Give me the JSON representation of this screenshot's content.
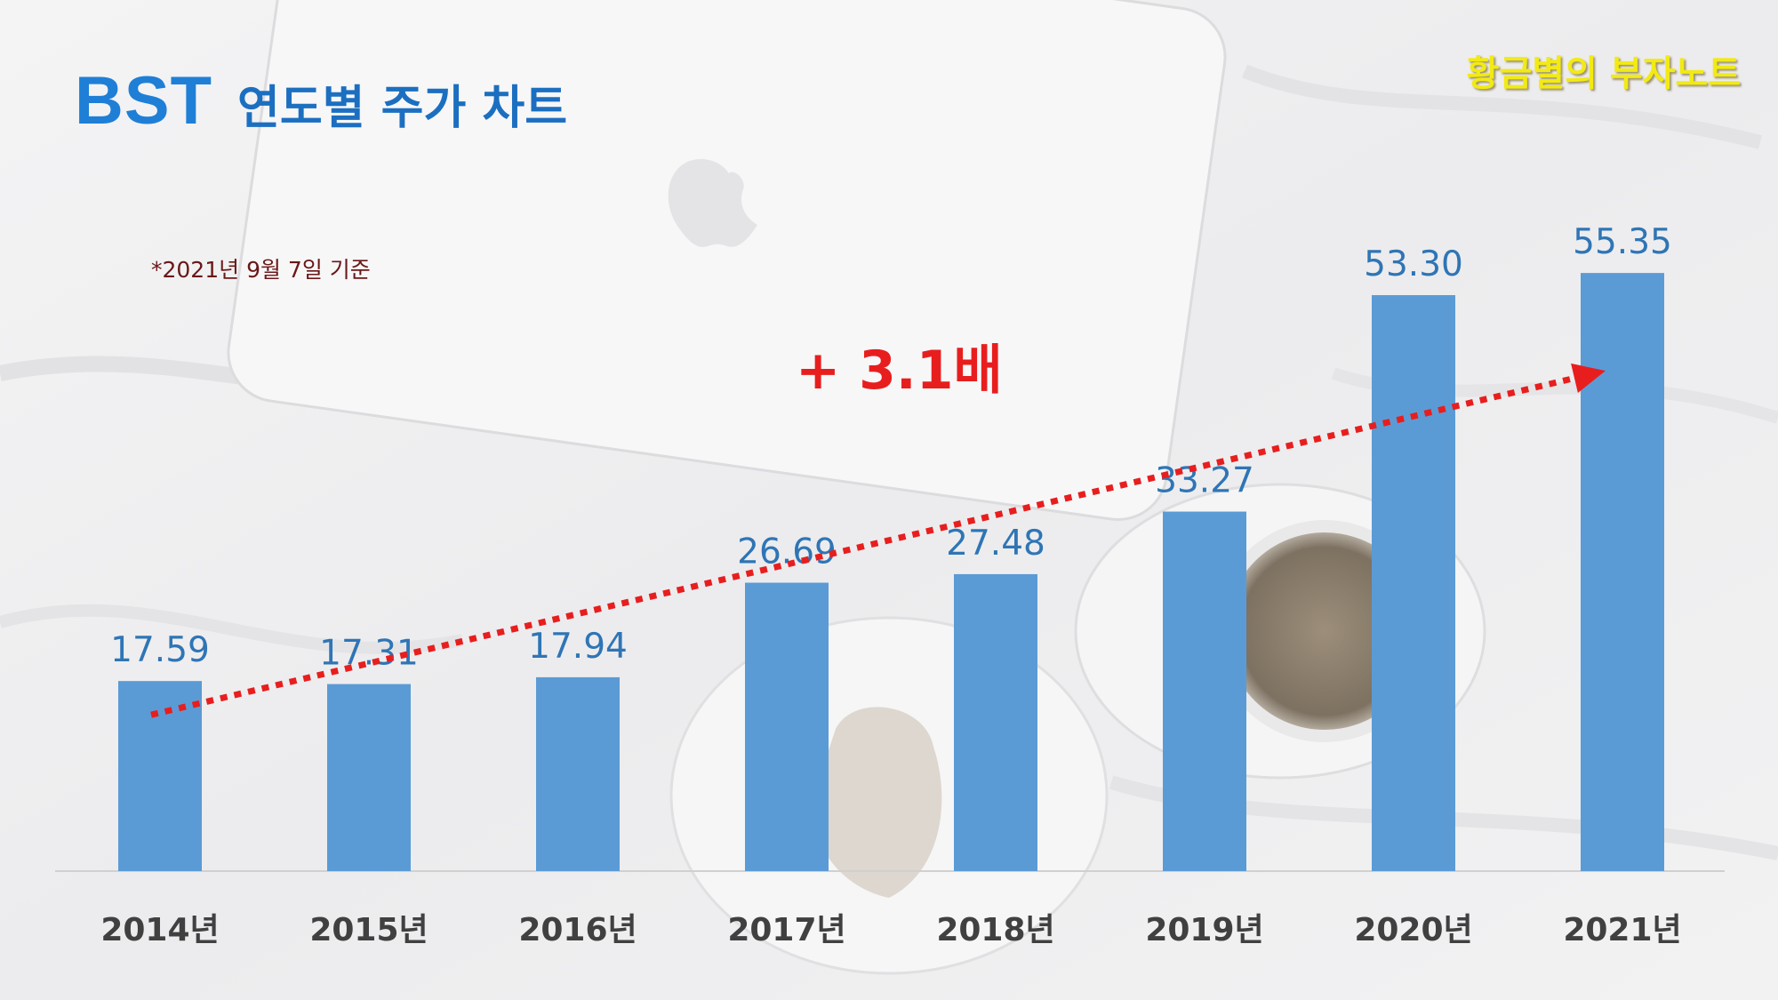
{
  "header": {
    "title_main": "BST",
    "title_sub": "연도별 주가 차트",
    "brand": "황금별의 부자노트",
    "note": "*2021년 9월 7일 기준"
  },
  "colors": {
    "bar": "#5b9bd5",
    "value_label": "#2f75b5",
    "category_label": "#404040",
    "trend": "#e81e1e",
    "title": "#1f7fd6",
    "brand": "#f2ea13"
  },
  "chart_data": {
    "type": "bar",
    "title": "",
    "xlabel": "",
    "ylabel": "",
    "categories": [
      "2014년",
      "2015년",
      "2016년",
      "2017년",
      "2018년",
      "2019년",
      "2020년",
      "2021년"
    ],
    "values": [
      17.59,
      17.31,
      17.94,
      26.69,
      27.48,
      33.27,
      53.3,
      55.35
    ],
    "value_labels": [
      "17.59",
      "17.31",
      "17.94",
      "26.69",
      "27.48",
      "33.27",
      "53.30",
      "55.35"
    ],
    "ylim": [
      0,
      60
    ],
    "grid": false,
    "legend": "none",
    "annotations": [
      {
        "text": "+ 3.1배",
        "type": "trend-arrow",
        "from": "2014년",
        "to": "2021년"
      }
    ]
  }
}
